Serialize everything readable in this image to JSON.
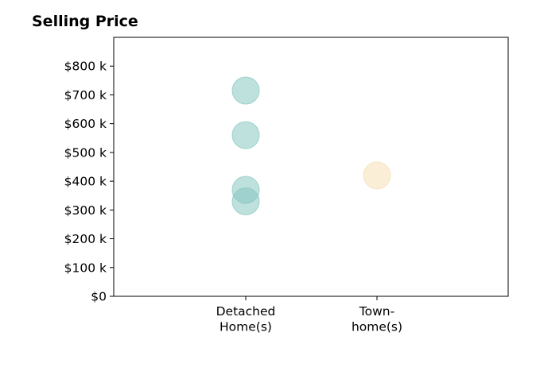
{
  "chart_data": {
    "type": "scatter",
    "title": "Selling Price",
    "xlabel": "",
    "ylabel": "",
    "categories": [
      {
        "label_lines": [
          "Detached",
          "Home(s)"
        ]
      },
      {
        "label_lines": [
          "Town-",
          "home(s)"
        ]
      }
    ],
    "ylim": [
      0,
      900
    ],
    "yticks": [
      {
        "value": 0,
        "label": "$0"
      },
      {
        "value": 100,
        "label": "$100 k"
      },
      {
        "value": 200,
        "label": "$200 k"
      },
      {
        "value": 300,
        "label": "$300 k"
      },
      {
        "value": 400,
        "label": "$400 k"
      },
      {
        "value": 500,
        "label": "$500 k"
      },
      {
        "value": 600,
        "label": "$600 k"
      },
      {
        "value": 700,
        "label": "$700 k"
      },
      {
        "value": 800,
        "label": "$800 k"
      }
    ],
    "series": [
      {
        "category": 0,
        "values": [
          715,
          560,
          370,
          330
        ],
        "color": "#80c4bd"
      },
      {
        "category": 1,
        "values": [
          420
        ],
        "color": "#f5deb0"
      }
    ],
    "grid": false,
    "legend": "none"
  }
}
